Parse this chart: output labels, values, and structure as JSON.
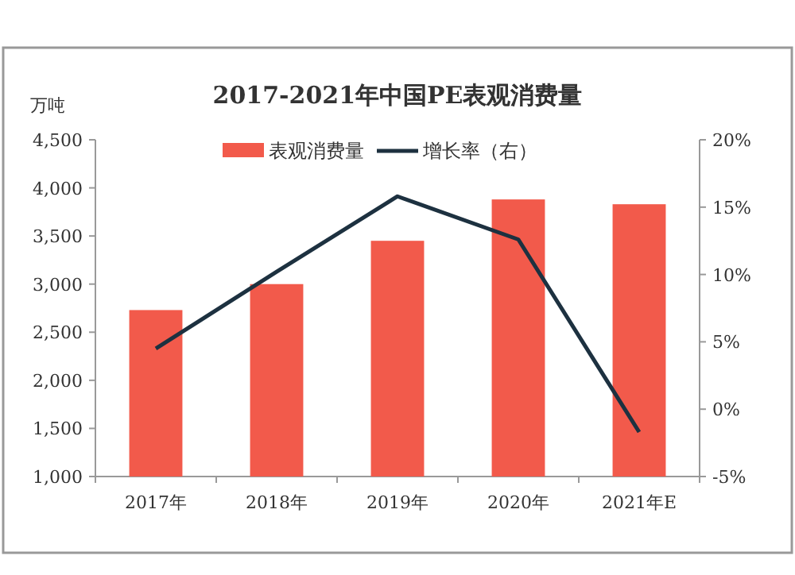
{
  "chart_data": {
    "type": "bar",
    "title": "2017-2021年中国PE表观消费量",
    "ylabel": "万吨",
    "categories": [
      "2017年",
      "2018年",
      "2019年",
      "2020年",
      "2021年E"
    ],
    "series": [
      {
        "name": "表观消费量",
        "color": "#f25a4b",
        "values": [
          2730,
          3000,
          3450,
          3880,
          3830
        ]
      },
      {
        "name": "增长率（右）",
        "type": "line",
        "axis": "y2",
        "color": "#1d3140",
        "values": [
          4.5,
          10.2,
          15.8,
          12.6,
          -1.7
        ]
      }
    ],
    "ylim": [
      1000,
      4500
    ],
    "yticks": [
      {
        "value": 1000,
        "label": "1,000"
      },
      {
        "value": 1500,
        "label": "1,500"
      },
      {
        "value": 2000,
        "label": "2,000"
      },
      {
        "value": 2500,
        "label": "2,500"
      },
      {
        "value": 3000,
        "label": "3,000"
      },
      {
        "value": 3500,
        "label": "3,500"
      },
      {
        "value": 4000,
        "label": "4,000"
      },
      {
        "value": 4500,
        "label": "4,500"
      }
    ],
    "y2lim": [
      -5,
      20
    ],
    "y2ticks": [
      {
        "value": -5,
        "label": "-5%"
      },
      {
        "value": 0,
        "label": "0%"
      },
      {
        "value": 5,
        "label": "5%"
      },
      {
        "value": 10,
        "label": "10%"
      },
      {
        "value": 15,
        "label": "15%"
      },
      {
        "value": 20,
        "label": "20%"
      }
    ],
    "legend": "top",
    "grid": false,
    "marker": "none"
  }
}
